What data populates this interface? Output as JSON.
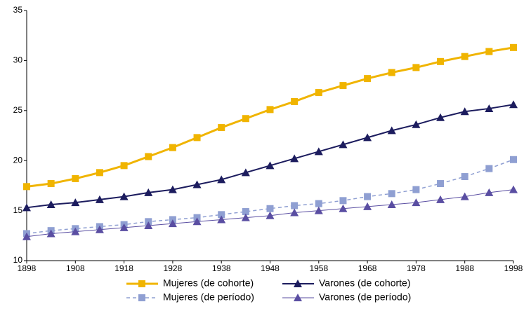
{
  "chart_data": {
    "type": "line",
    "x": [
      1898,
      1903,
      1908,
      1913,
      1918,
      1923,
      1928,
      1933,
      1938,
      1943,
      1948,
      1953,
      1958,
      1963,
      1968,
      1973,
      1978,
      1983,
      1988,
      1993,
      1998
    ],
    "xlim": [
      1898,
      1998
    ],
    "xticks": [
      1898,
      1908,
      1918,
      1928,
      1938,
      1948,
      1958,
      1968,
      1978,
      1988,
      1998
    ],
    "ylim": [
      10,
      35
    ],
    "yticks": [
      10,
      15,
      20,
      25,
      30,
      35
    ],
    "series": [
      {
        "name": "Mujeres (de cohorte)",
        "color": "#f0b400",
        "marker": "square",
        "dashed": false,
        "width": 3,
        "values": [
          17.4,
          17.7,
          18.2,
          18.8,
          19.5,
          20.4,
          21.3,
          22.3,
          23.3,
          24.2,
          25.1,
          25.9,
          26.8,
          27.5,
          28.2,
          28.8,
          29.3,
          29.9,
          30.4,
          30.9,
          31.3
        ]
      },
      {
        "name": "Varones (de cohorte)",
        "color": "#1c1c5e",
        "marker": "triangle",
        "dashed": false,
        "width": 2,
        "values": [
          15.3,
          15.6,
          15.8,
          16.1,
          16.4,
          16.8,
          17.1,
          17.6,
          18.1,
          18.8,
          19.5,
          20.2,
          20.9,
          21.6,
          22.3,
          23.0,
          23.6,
          24.3,
          24.9,
          25.2,
          25.6
        ]
      },
      {
        "name": "Mujeres (de período)",
        "color": "#8f9fd2",
        "marker": "square",
        "dashed": true,
        "width": 1.5,
        "values": [
          12.7,
          13.0,
          13.2,
          13.4,
          13.6,
          13.9,
          14.1,
          14.3,
          14.6,
          14.9,
          15.2,
          15.5,
          15.7,
          16.0,
          16.4,
          16.7,
          17.1,
          17.7,
          18.4,
          19.2,
          20.1
        ]
      },
      {
        "name": "Varones (de período)",
        "color": "#5a4ea2",
        "marker": "triangle",
        "dashed": false,
        "width": 1,
        "values": [
          12.4,
          12.7,
          12.9,
          13.1,
          13.3,
          13.5,
          13.7,
          13.9,
          14.1,
          14.3,
          14.5,
          14.8,
          15.0,
          15.2,
          15.4,
          15.6,
          15.8,
          16.1,
          16.4,
          16.8,
          17.1
        ]
      }
    ]
  }
}
